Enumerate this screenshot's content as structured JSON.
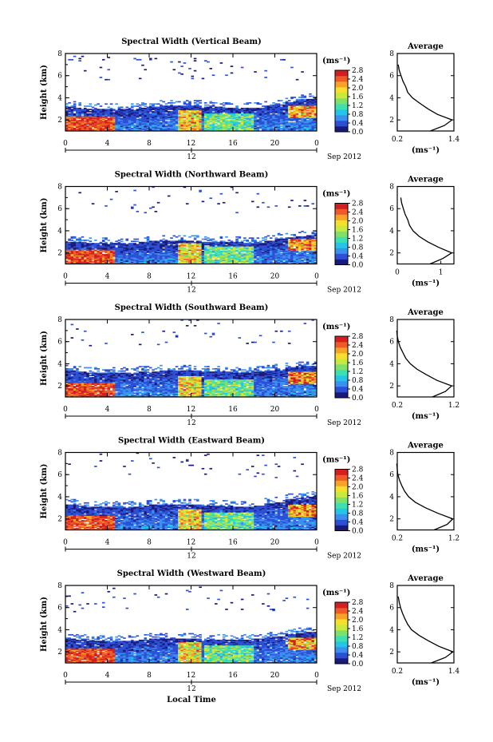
{
  "figure": {
    "xlabel": "Local Time",
    "colorbar_unit": "(ms⁻¹)",
    "avg_title": "Average",
    "avg_xlabel": "(ms⁻¹)",
    "heatmap_xticks": [
      "0",
      "4",
      "8",
      "12",
      "16",
      "20",
      "0"
    ],
    "date_tick": "12",
    "date_label": "Sep 2012",
    "colorbar_ticks": [
      "0.0",
      "0.4",
      "0.8",
      "1.2",
      "1.6",
      "2.0",
      "2.4",
      "2.8"
    ],
    "colorscale": [
      "#1a1a7a",
      "#2c4fd6",
      "#3a90ef",
      "#23c6e6",
      "#3ee0b0",
      "#7fe06a",
      "#c8ea3e",
      "#f7df2c",
      "#f8a327",
      "#f05a28",
      "#d31f1f"
    ]
  },
  "chart_data": [
    {
      "type": "heatmap",
      "title": "Spectral Width (Vertical Beam)",
      "ylabel": "Height (km)",
      "ylim": [
        1,
        8
      ],
      "yticks": [
        "2",
        "4",
        "6",
        "8"
      ],
      "xlim": [
        0,
        24
      ],
      "clim": [
        0,
        2.8
      ],
      "cloud_top_km": [
        3.2,
        3.1,
        3.0,
        3.0,
        3.0,
        3.0,
        3.0,
        3.1,
        3.2,
        3.3,
        3.3,
        3.3,
        3.3,
        3.2,
        3.2,
        3.1,
        3.1,
        3.1,
        3.1,
        3.3,
        3.4,
        3.6,
        3.8,
        3.9
      ],
      "average": {
        "xlim": [
          0.2,
          1.4
        ],
        "xticks": [
          "0.2",
          "1.4"
        ],
        "heights_km": [
          1.0,
          1.5,
          2.0,
          2.5,
          3.0,
          3.5,
          4.0,
          4.5,
          5.0,
          5.5,
          6.0,
          6.5,
          7.0
        ],
        "values": [
          0.9,
          1.2,
          1.36,
          1.05,
          0.85,
          0.68,
          0.52,
          0.42,
          0.38,
          0.32,
          0.28,
          0.24,
          0.22
        ]
      }
    },
    {
      "type": "heatmap",
      "title": "Spectral Width (Northward Beam)",
      "ylabel": "Height (km)",
      "ylim": [
        1,
        8
      ],
      "yticks": [
        "2",
        "4",
        "6",
        "8"
      ],
      "xlim": [
        0,
        24
      ],
      "clim": [
        0,
        2.8
      ],
      "cloud_top_km": [
        3.0,
        3.0,
        2.9,
        2.9,
        2.9,
        2.9,
        2.9,
        3.0,
        3.1,
        3.1,
        3.1,
        3.1,
        3.1,
        3.0,
        3.0,
        3.0,
        3.0,
        2.9,
        2.9,
        3.1,
        3.3,
        3.4,
        3.5,
        3.6
      ],
      "average": {
        "xlim": [
          0,
          1.3
        ],
        "xticks": [
          "0",
          "1"
        ],
        "heights_km": [
          1.0,
          1.5,
          2.0,
          2.5,
          3.0,
          3.5,
          4.0,
          4.5,
          5.0,
          5.5,
          6.0,
          6.5,
          7.0
        ],
        "values": [
          0.75,
          1.05,
          1.25,
          0.95,
          0.7,
          0.5,
          0.36,
          0.28,
          0.24,
          0.18,
          0.14,
          0.1,
          0.08
        ]
      }
    },
    {
      "type": "heatmap",
      "title": "Spectral Width (Southward Beam)",
      "ylabel": "Height (km)",
      "ylim": [
        1,
        8
      ],
      "yticks": [
        "2",
        "4",
        "6",
        "8"
      ],
      "xlim": [
        0,
        24
      ],
      "clim": [
        0,
        2.8
      ],
      "cloud_top_km": [
        3.4,
        3.3,
        3.2,
        3.2,
        3.2,
        3.2,
        3.2,
        3.3,
        3.3,
        3.4,
        3.4,
        3.4,
        3.4,
        3.3,
        3.3,
        3.3,
        3.2,
        3.2,
        3.3,
        3.4,
        3.5,
        3.7,
        3.8,
        3.8
      ],
      "average": {
        "xlim": [
          0.2,
          1.2
        ],
        "xticks": [
          "0.2",
          "1.2"
        ],
        "heights_km": [
          1.0,
          1.5,
          2.0,
          2.5,
          3.0,
          3.5,
          4.0,
          4.5,
          5.0,
          5.5,
          6.0,
          6.5,
          7.0
        ],
        "values": [
          0.82,
          1.05,
          1.16,
          0.9,
          0.72,
          0.55,
          0.43,
          0.35,
          0.3,
          0.25,
          0.22,
          0.2,
          0.19
        ]
      }
    },
    {
      "type": "heatmap",
      "title": "Spectral Width (Eastward Beam)",
      "ylabel": "Height (km)",
      "ylim": [
        1,
        8
      ],
      "yticks": [
        "2",
        "4",
        "6",
        "8"
      ],
      "xlim": [
        0,
        24
      ],
      "clim": [
        0,
        2.8
      ],
      "cloud_top_km": [
        3.3,
        3.2,
        3.1,
        3.1,
        3.1,
        3.1,
        3.1,
        3.2,
        3.3,
        3.3,
        3.3,
        3.3,
        3.3,
        3.2,
        3.2,
        3.2,
        3.1,
        3.1,
        3.2,
        3.4,
        3.5,
        3.8,
        3.9,
        4.0
      ],
      "average": {
        "xlim": [
          0.2,
          1.2
        ],
        "xticks": [
          "0.2",
          "1.2"
        ],
        "heights_km": [
          1.0,
          1.5,
          2.0,
          2.5,
          3.0,
          3.5,
          4.0,
          4.5,
          5.0,
          5.5,
          6.0,
          6.5,
          7.0
        ],
        "values": [
          0.85,
          1.08,
          1.18,
          0.92,
          0.7,
          0.52,
          0.4,
          0.33,
          0.28,
          0.24,
          0.21,
          0.2,
          0.19
        ]
      }
    },
    {
      "type": "heatmap",
      "title": "Spectral Width (Westward Beam)",
      "ylabel": "Height (km)",
      "ylim": [
        1,
        8
      ],
      "yticks": [
        "2",
        "4",
        "6",
        "8"
      ],
      "xlim": [
        0,
        24
      ],
      "clim": [
        0,
        2.8
      ],
      "cloud_top_km": [
        3.2,
        3.1,
        3.0,
        3.0,
        3.0,
        3.0,
        3.0,
        3.1,
        3.2,
        3.2,
        3.2,
        3.2,
        3.2,
        3.1,
        3.1,
        3.1,
        3.1,
        3.1,
        3.2,
        3.3,
        3.4,
        3.6,
        3.7,
        3.8
      ],
      "average": {
        "xlim": [
          0.2,
          1.4
        ],
        "xticks": [
          "0.2",
          "1.4"
        ],
        "heights_km": [
          1.0,
          1.5,
          2.0,
          2.5,
          3.0,
          3.5,
          4.0,
          4.5,
          5.0,
          5.5,
          6.0,
          6.5,
          7.0
        ],
        "values": [
          0.92,
          1.22,
          1.38,
          1.08,
          0.86,
          0.66,
          0.5,
          0.42,
          0.36,
          0.31,
          0.27,
          0.24,
          0.22
        ]
      }
    }
  ]
}
